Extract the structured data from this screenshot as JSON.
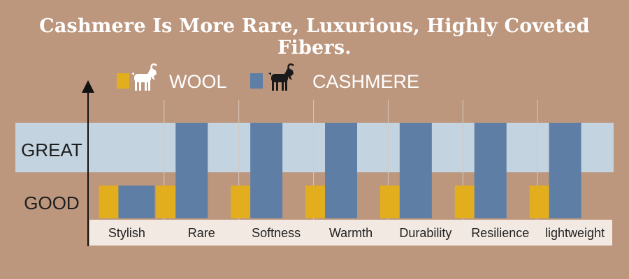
{
  "title": "Cashmere Is More Rare, Luxurious, Highly Coveted Fibers.",
  "chart_data": {
    "type": "bar",
    "categories": [
      "Stylish",
      "Rare",
      "Softness",
      "Warmth",
      "Durability",
      "Resilience",
      "lightweight"
    ],
    "y_levels": [
      "GOOD",
      "GREAT"
    ],
    "series": [
      {
        "name": "WOOL",
        "color": "#e2ae1d",
        "values": [
          "GOOD",
          "GOOD",
          "GOOD",
          "GOOD",
          "GOOD",
          "GOOD",
          "GOOD"
        ],
        "icon": "white-goat-icon"
      },
      {
        "name": "CASHMERE",
        "color": "#5e7ea5",
        "values": [
          "GOOD",
          "GREAT",
          "GREAT",
          "GREAT",
          "GREAT",
          "GREAT",
          "GREAT"
        ],
        "icon": "black-goat-icon"
      }
    ],
    "highlight_band_color": "#c3d3e0",
    "legend_position": "top"
  }
}
